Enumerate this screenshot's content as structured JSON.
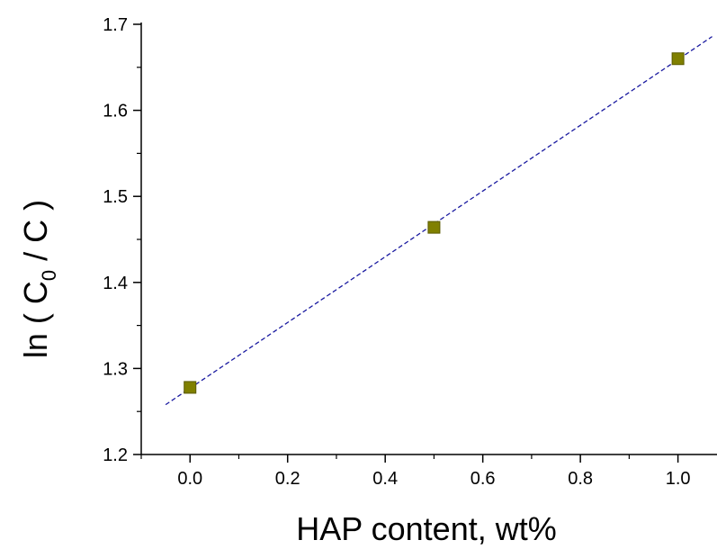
{
  "chart_data": {
    "type": "scatter",
    "xlabel": "HAP content, wt%",
    "ylabel": {
      "prefix": "ln ( C",
      "subscript": "0",
      "suffix": " / C )"
    },
    "xlim": [
      -0.1,
      1.08
    ],
    "ylim": [
      1.2,
      1.7
    ],
    "x_ticks": [
      "0.0",
      "0.2",
      "0.4",
      "0.6",
      "0.8",
      "1.0"
    ],
    "x_tick_values": [
      0.0,
      0.2,
      0.4,
      0.6,
      0.8,
      1.0
    ],
    "y_ticks": [
      "1.2",
      "1.3",
      "1.4",
      "1.5",
      "1.6",
      "1.7"
    ],
    "y_tick_values": [
      1.2,
      1.3,
      1.4,
      1.5,
      1.6,
      1.7
    ],
    "series": [
      {
        "points": [
          {
            "x": 0.0,
            "y": 1.278
          },
          {
            "x": 0.5,
            "y": 1.464
          },
          {
            "x": 1.0,
            "y": 1.66
          }
        ],
        "marker": "square",
        "color": "#808000"
      }
    ],
    "fit_line": {
      "style": "dashed",
      "color": "#1a1aa0",
      "x_range": [
        -0.05,
        1.07
      ],
      "slope": 0.382,
      "intercept": 1.277
    },
    "grid": false
  }
}
